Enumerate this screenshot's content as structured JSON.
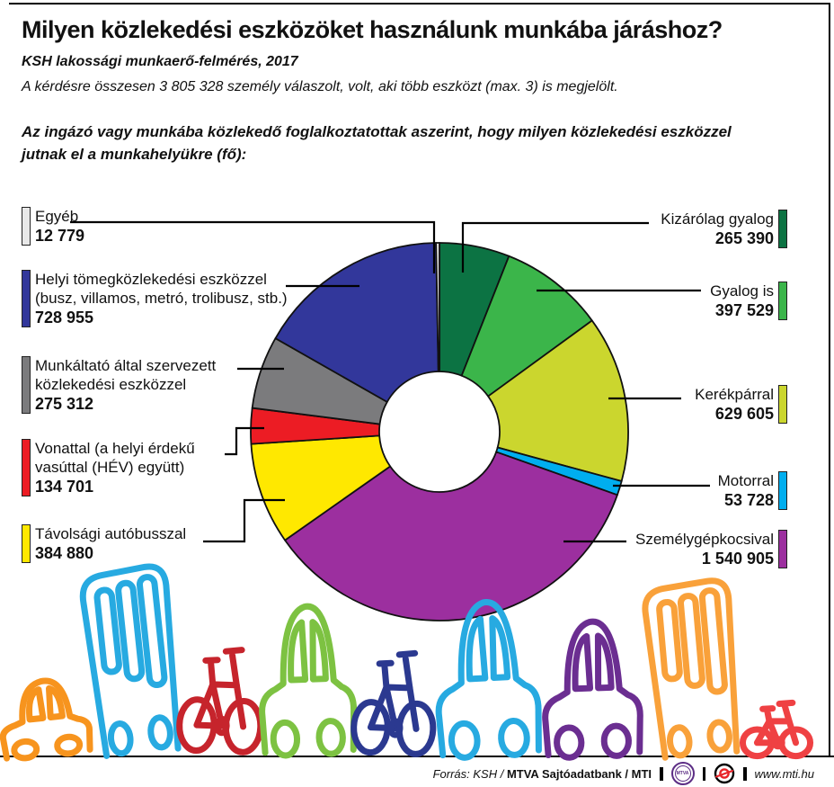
{
  "header": {
    "title": "Milyen közlekedési eszközöket használunk munkába járáshoz?",
    "subtitle": "KSH  lakossági munkaerő-felmérés, 2017",
    "note": "A  kérdésre összesen 3 805 328 személy válaszolt, volt, aki több eszközt (max. 3) is megjelölt.",
    "lead": [
      "Az ingázó vagy munkába közlekedő foglalkoztatottak aszerint, hogy milyen közlekedési eszközzel",
      "jutnak el a munkahelyükre (fő):"
    ]
  },
  "chart_data": {
    "type": "pie",
    "title": "Milyen közlekedési eszközöket használunk munkába járáshoz?",
    "unit": "fő",
    "donut": true,
    "direction": "clockwise",
    "start_angle_deg": 0,
    "inner_radius_ratio": 0.32,
    "segments": [
      {
        "label": "Kizárólag gyalog",
        "value": 265390,
        "display": "265 390",
        "color": "#0C7343"
      },
      {
        "label": "Gyalog is",
        "value": 397529,
        "display": "397 529",
        "color": "#3BB54A"
      },
      {
        "label": "Kerékpárral",
        "value": 629605,
        "display": "629 605",
        "color": "#CBD62E"
      },
      {
        "label": "Motorral",
        "value": 53728,
        "display": "53 728",
        "color": "#00AEEF"
      },
      {
        "label": "Személygépkocsival",
        "value": 1540905,
        "display": "1 540 905",
        "color": "#9C2F9F"
      },
      {
        "label": "Távolsági autóbusszal",
        "value": 384880,
        "display": "384 880",
        "color": "#FFE800"
      },
      {
        "label": "Vonattal (a helyi érdekű vasúttal (HÉV) együtt)",
        "value": 134701,
        "display": "134 701",
        "color": "#EC1C24"
      },
      {
        "label": "Munkáltató által szervezett közlekedési eszközzel",
        "value": 275312,
        "display": "275 312",
        "color": "#7B7B7D"
      },
      {
        "label": "Helyi tömegközlekedési eszközzel (busz, villamos, metró, trolibusz, stb.)",
        "value": 728955,
        "display": "728 955",
        "color": "#32379B"
      },
      {
        "label": "Egyéb",
        "value": 12779,
        "display": "12 779",
        "color": "#E8E8E8"
      }
    ]
  },
  "legend_left": [
    {
      "segment": 9,
      "lines": [
        "Egyéb"
      ]
    },
    {
      "segment": 8,
      "lines": [
        "Helyi tömegközlekedési eszközzel",
        "(busz, villamos, metró, trolibusz, stb.)"
      ]
    },
    {
      "segment": 7,
      "lines": [
        "Munkáltató által szervezett",
        "közlekedési eszközzel"
      ]
    },
    {
      "segment": 6,
      "lines": [
        "Vonattal (a helyi érdekű",
        "vasúttal (HÉV) együtt)"
      ]
    },
    {
      "segment": 5,
      "lines": [
        "Távolsági autóbusszal"
      ]
    }
  ],
  "legend_right": [
    {
      "segment": 0,
      "lines": [
        "Kizárólag gyalog"
      ]
    },
    {
      "segment": 1,
      "lines": [
        "Gyalog is"
      ]
    },
    {
      "segment": 2,
      "lines": [
        "Kerékpárral"
      ]
    },
    {
      "segment": 3,
      "lines": [
        "Motorral"
      ]
    },
    {
      "segment": 4,
      "lines": [
        "Személygépkocsival"
      ]
    }
  ],
  "decorations": {
    "vehicles": [
      {
        "type": "car",
        "color": "#F7941E"
      },
      {
        "type": "bus",
        "color": "#27AAE1"
      },
      {
        "type": "bike",
        "color": "#C6242C"
      },
      {
        "type": "car",
        "color": "#7DC242"
      },
      {
        "type": "bike",
        "color": "#2B3990"
      },
      {
        "type": "car",
        "color": "#27AAE1"
      },
      {
        "type": "car",
        "color": "#6B2E91"
      },
      {
        "type": "bus",
        "color": "#F9A13A"
      },
      {
        "type": "bike",
        "color": "#EF4143"
      }
    ]
  },
  "footer": {
    "source_italic": "Forrás: KSH /",
    "source_bold": "MTVA Sajtóadatbank / MTI",
    "mtva_logo_text": "MTVA",
    "website": "www.mti.hu"
  }
}
